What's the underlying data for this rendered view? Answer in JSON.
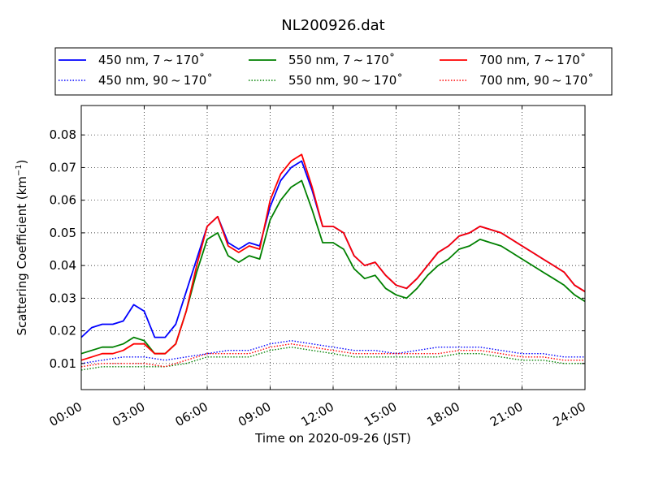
{
  "chart_data": {
    "type": "line",
    "title": "NL200926.dat",
    "xlabel": "Time on 2020-09-26 (JST)",
    "ylabel_main": "Scattering Coefficient (km",
    "ylabel_sup": "−1",
    "ylabel_close": ")",
    "xlim": [
      0,
      24
    ],
    "ylim": [
      0.002,
      0.089
    ],
    "x_ticks": [
      {
        "value": 0,
        "label": "00:00"
      },
      {
        "value": 3,
        "label": "03:00"
      },
      {
        "value": 6,
        "label": "06:00"
      },
      {
        "value": 9,
        "label": "09:00"
      },
      {
        "value": 12,
        "label": "12:00"
      },
      {
        "value": 15,
        "label": "15:00"
      },
      {
        "value": 18,
        "label": "18:00"
      },
      {
        "value": 21,
        "label": "21:00"
      },
      {
        "value": 24,
        "label": "24:00"
      }
    ],
    "y_ticks": [
      {
        "value": 0.01,
        "label": "0.01"
      },
      {
        "value": 0.02,
        "label": "0.02"
      },
      {
        "value": 0.03,
        "label": "0.03"
      },
      {
        "value": 0.04,
        "label": "0.04"
      },
      {
        "value": 0.05,
        "label": "0.05"
      },
      {
        "value": 0.06,
        "label": "0.06"
      },
      {
        "value": 0.07,
        "label": "0.07"
      },
      {
        "value": 0.08,
        "label": "0.08"
      }
    ],
    "grid": true,
    "legend_position": "top-center, above plot",
    "series": [
      {
        "name": "450 nm, 7 ~ 170˚",
        "color": "#0000ff",
        "style": "solid",
        "x": [
          0,
          0.5,
          1,
          1.5,
          2,
          2.5,
          3,
          3.5,
          4,
          4.5,
          5,
          5.5,
          6,
          6.5,
          7,
          7.5,
          8,
          8.5,
          9,
          9.5,
          10,
          10.5,
          11,
          11.5,
          12,
          12.5,
          13,
          13.5,
          14,
          14.5,
          15,
          15.5,
          16,
          16.5,
          17,
          17.5,
          18,
          18.5,
          19,
          19.5,
          20,
          20.5,
          21,
          21.5,
          22,
          22.5,
          23,
          23.5,
          24
        ],
        "y": [
          0.018,
          0.021,
          0.022,
          0.022,
          0.023,
          0.028,
          0.026,
          0.018,
          0.018,
          0.022,
          0.032,
          0.042,
          0.052,
          0.055,
          0.047,
          0.045,
          0.047,
          0.046,
          0.058,
          0.066,
          0.07,
          0.072,
          0.063,
          0.052,
          0.052,
          0.05,
          0.043,
          0.04,
          0.041,
          0.037,
          0.034,
          0.033,
          0.036,
          0.04,
          0.044,
          0.046,
          0.049,
          0.05,
          0.052,
          0.051,
          0.05,
          0.048,
          0.046,
          0.044,
          0.042,
          0.04,
          0.038,
          0.034,
          0.032
        ]
      },
      {
        "name": "550 nm, 7 ~ 170˚",
        "color": "#008000",
        "style": "solid",
        "x": [
          0,
          0.5,
          1,
          1.5,
          2,
          2.5,
          3,
          3.5,
          4,
          4.5,
          5,
          5.5,
          6,
          6.5,
          7,
          7.5,
          8,
          8.5,
          9,
          9.5,
          10,
          10.5,
          11,
          11.5,
          12,
          12.5,
          13,
          13.5,
          14,
          14.5,
          15,
          15.5,
          16,
          16.5,
          17,
          17.5,
          18,
          18.5,
          19,
          19.5,
          20,
          20.5,
          21,
          21.5,
          22,
          22.5,
          23,
          23.5,
          24
        ],
        "y": [
          0.013,
          0.014,
          0.015,
          0.015,
          0.016,
          0.018,
          0.017,
          0.013,
          0.013,
          0.016,
          0.026,
          0.038,
          0.048,
          0.05,
          0.043,
          0.041,
          0.043,
          0.042,
          0.054,
          0.06,
          0.064,
          0.066,
          0.057,
          0.047,
          0.047,
          0.045,
          0.039,
          0.036,
          0.037,
          0.033,
          0.031,
          0.03,
          0.033,
          0.037,
          0.04,
          0.042,
          0.045,
          0.046,
          0.048,
          0.047,
          0.046,
          0.044,
          0.042,
          0.04,
          0.038,
          0.036,
          0.034,
          0.031,
          0.029
        ]
      },
      {
        "name": "700 nm, 7 ~ 170˚",
        "color": "#ff0000",
        "style": "solid",
        "x": [
          0,
          0.5,
          1,
          1.5,
          2,
          2.5,
          3,
          3.5,
          4,
          4.5,
          5,
          5.5,
          6,
          6.5,
          7,
          7.5,
          8,
          8.5,
          9,
          9.5,
          10,
          10.5,
          11,
          11.5,
          12,
          12.5,
          13,
          13.5,
          14,
          14.5,
          15,
          15.5,
          16,
          16.5,
          17,
          17.5,
          18,
          18.5,
          19,
          19.5,
          20,
          20.5,
          21,
          21.5,
          22,
          22.5,
          23,
          23.5,
          24
        ],
        "y": [
          0.011,
          0.012,
          0.013,
          0.013,
          0.014,
          0.016,
          0.016,
          0.013,
          0.013,
          0.016,
          0.026,
          0.04,
          0.052,
          0.055,
          0.046,
          0.044,
          0.046,
          0.045,
          0.06,
          0.068,
          0.072,
          0.074,
          0.064,
          0.052,
          0.052,
          0.05,
          0.043,
          0.04,
          0.041,
          0.037,
          0.034,
          0.033,
          0.036,
          0.04,
          0.044,
          0.046,
          0.049,
          0.05,
          0.052,
          0.051,
          0.05,
          0.048,
          0.046,
          0.044,
          0.042,
          0.04,
          0.038,
          0.034,
          0.032
        ]
      },
      {
        "name": "450 nm, 90 ~ 170˚",
        "color": "#0000ff",
        "style": "dotted",
        "x": [
          0,
          1,
          2,
          3,
          4,
          5,
          6,
          7,
          8,
          9,
          10,
          11,
          12,
          13,
          14,
          15,
          16,
          17,
          18,
          19,
          20,
          21,
          22,
          23,
          24
        ],
        "y": [
          0.01,
          0.011,
          0.012,
          0.012,
          0.011,
          0.012,
          0.013,
          0.014,
          0.014,
          0.016,
          0.017,
          0.016,
          0.015,
          0.014,
          0.014,
          0.013,
          0.014,
          0.015,
          0.015,
          0.015,
          0.014,
          0.013,
          0.013,
          0.012,
          0.012
        ]
      },
      {
        "name": "550 nm, 90 ~ 170˚",
        "color": "#008000",
        "style": "dotted",
        "x": [
          0,
          1,
          2,
          3,
          4,
          5,
          6,
          7,
          8,
          9,
          10,
          11,
          12,
          13,
          14,
          15,
          16,
          17,
          18,
          19,
          20,
          21,
          22,
          23,
          24
        ],
        "y": [
          0.008,
          0.009,
          0.009,
          0.009,
          0.009,
          0.01,
          0.012,
          0.012,
          0.012,
          0.014,
          0.015,
          0.014,
          0.013,
          0.012,
          0.012,
          0.012,
          0.012,
          0.012,
          0.013,
          0.013,
          0.012,
          0.011,
          0.011,
          0.01,
          0.01
        ]
      },
      {
        "name": "700 nm, 90 ~ 170˚",
        "color": "#ff0000",
        "style": "dotted",
        "x": [
          0,
          1,
          2,
          3,
          4,
          5,
          6,
          7,
          8,
          9,
          10,
          11,
          12,
          13,
          14,
          15,
          16,
          17,
          18,
          19,
          20,
          21,
          22,
          23,
          24
        ],
        "y": [
          0.009,
          0.01,
          0.01,
          0.01,
          0.009,
          0.011,
          0.013,
          0.013,
          0.013,
          0.015,
          0.016,
          0.015,
          0.014,
          0.013,
          0.013,
          0.013,
          0.013,
          0.013,
          0.014,
          0.014,
          0.013,
          0.012,
          0.012,
          0.011,
          0.011
        ]
      }
    ]
  }
}
